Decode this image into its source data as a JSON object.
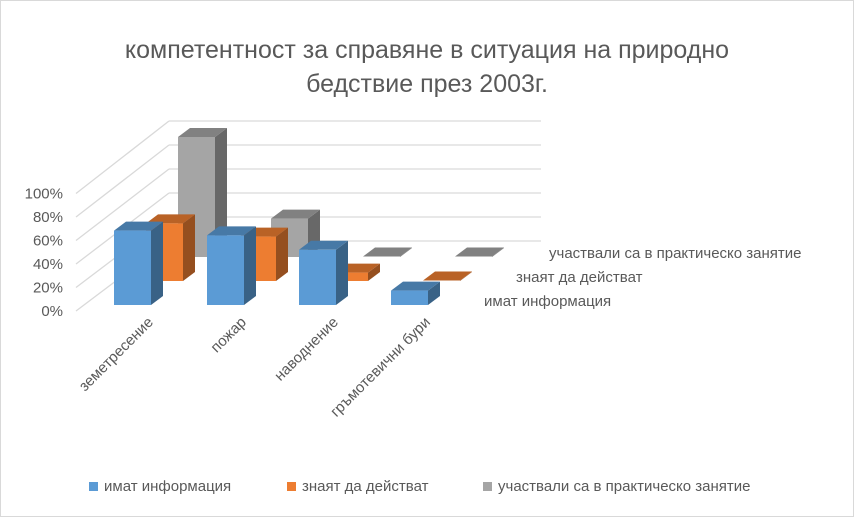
{
  "chart_data": {
    "type": "bar",
    "title": "компетентност за справяне в ситуация на природно бедствие през 2003г.",
    "title_lines": [
      "компетентност за справяне в ситуация на природно",
      "бедствие през 2003г."
    ],
    "categories": [
      "земетресение",
      "пожар",
      "наводнение",
      "гръмотевични бури"
    ],
    "series": [
      {
        "name": "имат информация",
        "color": "#5B9BD5",
        "values": [
          62,
          58,
          46,
          12
        ]
      },
      {
        "name": "знаят да действат",
        "color": "#ED7D31",
        "values": [
          48,
          37,
          7,
          0
        ]
      },
      {
        "name": "участвали са в практическо занятие",
        "color": "#A5A5A5",
        "values": [
          100,
          32,
          0,
          0
        ]
      }
    ],
    "y_ticks": [
      "0%",
      "20%",
      "40%",
      "60%",
      "80%",
      "100%"
    ],
    "ylim": [
      0,
      100
    ],
    "grid": true,
    "legend": "bottom"
  }
}
